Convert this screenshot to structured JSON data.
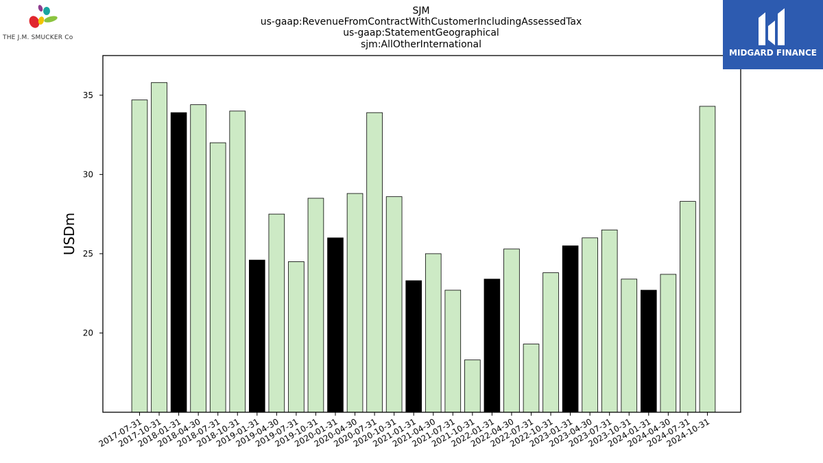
{
  "brand_left": {
    "name": "THE J.M. SMUCKER Co"
  },
  "brand_right": {
    "name": "MIDGARD FINANCE",
    "color": "#2d5bb0"
  },
  "chart_data": {
    "type": "bar",
    "title_lines": [
      "SJM",
      "us-gaap:RevenueFromContractWithCustomerIncludingAssessedTax",
      "us-gaap:StatementGeographical",
      "sjm:AllOtherInternational"
    ],
    "xlabel": "",
    "ylabel": "USDm",
    "ylim": [
      15,
      37.5
    ],
    "yticks": [
      20,
      25,
      30,
      35
    ],
    "grid": false,
    "colors": {
      "regular": "#cdeac5",
      "highlight": "#000000",
      "edge": "#000000"
    },
    "categories": [
      "2017-07-31",
      "2017-10-31",
      "2018-01-31",
      "2018-04-30",
      "2018-07-31",
      "2018-10-31",
      "2019-01-31",
      "2019-04-30",
      "2019-07-31",
      "2019-10-31",
      "2020-01-31",
      "2020-04-30",
      "2020-07-31",
      "2020-10-31",
      "2021-01-31",
      "2021-04-30",
      "2021-07-31",
      "2021-10-31",
      "2022-01-31",
      "2022-04-30",
      "2022-07-31",
      "2022-10-31",
      "2023-01-31",
      "2023-04-30",
      "2023-07-31",
      "2023-10-31",
      "2024-01-31",
      "2024-04-30",
      "2024-07-31",
      "2024-10-31"
    ],
    "values": [
      34.7,
      35.8,
      33.9,
      34.4,
      32.0,
      34.0,
      24.6,
      27.5,
      24.5,
      28.5,
      26.0,
      28.8,
      33.9,
      28.6,
      23.3,
      25.0,
      22.7,
      18.3,
      23.4,
      25.3,
      19.3,
      23.8,
      25.5,
      26.0,
      26.5,
      23.4,
      22.7,
      23.7,
      28.3,
      34.3
    ],
    "highlight": [
      false,
      false,
      true,
      false,
      false,
      false,
      true,
      false,
      false,
      false,
      true,
      false,
      false,
      false,
      true,
      false,
      false,
      false,
      true,
      false,
      false,
      false,
      true,
      false,
      false,
      false,
      true,
      false,
      false,
      false
    ]
  }
}
